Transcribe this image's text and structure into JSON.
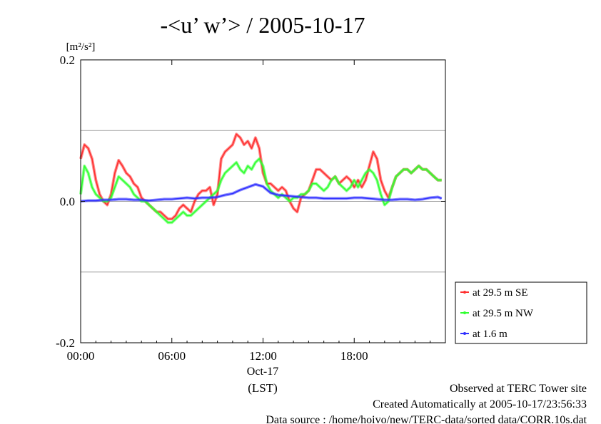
{
  "chart_data": {
    "type": "line",
    "title": "-<u’ w’> / 2005-10-17",
    "ylabel_unit": "[m²/s²]",
    "ylim": [
      -0.2,
      0.2
    ],
    "yticks": [
      {
        "value": 0.2,
        "label": "0.2"
      },
      {
        "value": 0.0,
        "label": "0.0"
      },
      {
        "value": -0.2,
        "label": "-0.2"
      }
    ],
    "ygrid": [
      0.1,
      0.0,
      -0.1
    ],
    "xlim": [
      0,
      24
    ],
    "xticks": [
      {
        "value": 0,
        "label": "00:00"
      },
      {
        "value": 6,
        "label": "06:00"
      },
      {
        "value": 12,
        "label": "12:00"
      },
      {
        "value": 18,
        "label": "18:00"
      }
    ],
    "date_label": "Oct-17",
    "xlabel": "(LST)",
    "grid": "horizontal",
    "legend_position": "right",
    "series": [
      {
        "name": "at 29.5 m SE",
        "color": "#ff3030",
        "x": [
          0,
          0.25,
          0.5,
          0.75,
          1,
          1.25,
          1.5,
          1.75,
          2,
          2.25,
          2.5,
          2.75,
          3,
          3.25,
          3.5,
          3.75,
          4,
          4.25,
          4.5,
          4.75,
          5,
          5.25,
          5.5,
          5.75,
          6,
          6.25,
          6.5,
          6.75,
          7,
          7.25,
          7.5,
          7.75,
          8,
          8.25,
          8.5,
          8.75,
          9,
          9.25,
          9.5,
          9.75,
          10,
          10.25,
          10.5,
          10.75,
          11,
          11.25,
          11.5,
          11.75,
          12,
          12.25,
          12.5,
          12.75,
          13,
          13.25,
          13.5,
          13.75,
          14,
          14.25,
          14.5,
          14.75,
          15,
          15.25,
          15.5,
          15.75,
          16,
          16.25,
          16.5,
          16.75,
          17,
          17.25,
          17.5,
          17.75,
          18,
          18.25,
          18.5,
          18.75,
          19,
          19.25,
          19.5,
          19.75,
          20,
          20.25,
          20.5,
          20.75,
          21,
          21.25,
          21.5,
          21.75,
          22,
          22.25,
          22.5,
          22.75,
          23,
          23.25,
          23.5,
          23.75
        ],
        "values": [
          0.06,
          0.08,
          0.075,
          0.06,
          0.03,
          0.01,
          0.0,
          -0.005,
          0.01,
          0.04,
          0.058,
          0.05,
          0.04,
          0.035,
          0.025,
          0.02,
          0.005,
          0.0,
          -0.005,
          -0.01,
          -0.015,
          -0.015,
          -0.02,
          -0.025,
          -0.025,
          -0.02,
          -0.01,
          -0.005,
          -0.01,
          -0.015,
          0.0,
          0.01,
          0.015,
          0.015,
          0.02,
          -0.005,
          0.01,
          0.06,
          0.07,
          0.075,
          0.08,
          0.095,
          0.09,
          0.08,
          0.085,
          0.075,
          0.09,
          0.075,
          0.04,
          0.025,
          0.025,
          0.02,
          0.015,
          0.02,
          0.015,
          0.0,
          -0.01,
          -0.015,
          0.005,
          0.01,
          0.015,
          0.03,
          0.045,
          0.045,
          0.04,
          0.035,
          0.03,
          0.035,
          0.025,
          0.03,
          0.035,
          0.03,
          0.02,
          0.03,
          0.02,
          0.03,
          0.05,
          0.07,
          0.06,
          0.03,
          0.015,
          0.005,
          0.02,
          0.035,
          0.04,
          0.045,
          0.045,
          0.04,
          0.045,
          0.05,
          0.045,
          0.045,
          0.04,
          0.035,
          0.03,
          0.03
        ]
      },
      {
        "name": "at 29.5 m NW",
        "color": "#30ff30",
        "x": [
          0,
          0.25,
          0.5,
          0.75,
          1,
          1.25,
          1.5,
          1.75,
          2,
          2.25,
          2.5,
          2.75,
          3,
          3.25,
          3.5,
          3.75,
          4,
          4.25,
          4.5,
          4.75,
          5,
          5.25,
          5.5,
          5.75,
          6,
          6.25,
          6.5,
          6.75,
          7,
          7.25,
          7.5,
          7.75,
          8,
          8.25,
          8.5,
          8.75,
          9,
          9.25,
          9.5,
          9.75,
          10,
          10.25,
          10.5,
          10.75,
          11,
          11.25,
          11.5,
          11.75,
          12,
          12.25,
          12.5,
          12.75,
          13,
          13.25,
          13.5,
          13.75,
          14,
          14.25,
          14.5,
          14.75,
          15,
          15.25,
          15.5,
          15.75,
          16,
          16.25,
          16.5,
          16.75,
          17,
          17.25,
          17.5,
          17.75,
          18,
          18.25,
          18.5,
          18.75,
          19,
          19.25,
          19.5,
          19.75,
          20,
          20.25,
          20.5,
          20.75,
          21,
          21.25,
          21.5,
          21.75,
          22,
          22.25,
          22.5,
          22.75,
          23,
          23.25,
          23.5,
          23.75
        ],
        "values": [
          0.01,
          0.05,
          0.04,
          0.02,
          0.01,
          0.005,
          0.0,
          0.0,
          0.005,
          0.02,
          0.035,
          0.03,
          0.025,
          0.02,
          0.01,
          0.005,
          0.0,
          0.0,
          -0.005,
          -0.01,
          -0.015,
          -0.02,
          -0.025,
          -0.03,
          -0.03,
          -0.025,
          -0.02,
          -0.015,
          -0.02,
          -0.02,
          -0.015,
          -0.01,
          -0.005,
          0.0,
          0.005,
          0.01,
          0.015,
          0.03,
          0.04,
          0.045,
          0.05,
          0.055,
          0.045,
          0.04,
          0.05,
          0.045,
          0.055,
          0.06,
          0.05,
          0.025,
          0.015,
          0.01,
          0.005,
          0.01,
          0.005,
          0.0,
          0.005,
          0.005,
          0.01,
          0.01,
          0.015,
          0.025,
          0.025,
          0.02,
          0.015,
          0.02,
          0.03,
          0.035,
          0.025,
          0.02,
          0.015,
          0.02,
          0.03,
          0.02,
          0.03,
          0.04,
          0.045,
          0.04,
          0.03,
          0.01,
          -0.005,
          0.0,
          0.02,
          0.035,
          0.04,
          0.045,
          0.045,
          0.04,
          0.045,
          0.05,
          0.045,
          0.045,
          0.04,
          0.035,
          0.03,
          0.03
        ]
      },
      {
        "name": "at 1.6 m",
        "color": "#3030ff",
        "x": [
          0,
          0.5,
          1,
          1.5,
          2,
          2.5,
          3,
          3.5,
          4,
          4.5,
          5,
          5.5,
          6,
          6.5,
          7,
          7.5,
          8,
          8.5,
          9,
          9.5,
          10,
          10.5,
          11,
          11.5,
          12,
          12.5,
          13,
          13.5,
          14,
          14.5,
          15,
          15.5,
          16,
          16.5,
          17,
          17.5,
          18,
          18.5,
          19,
          19.5,
          20,
          20.5,
          21,
          21.5,
          22,
          22.5,
          23,
          23.5,
          23.75
        ],
        "values": [
          0.0,
          0.001,
          0.001,
          0.002,
          0.002,
          0.003,
          0.003,
          0.002,
          0.002,
          0.001,
          0.002,
          0.003,
          0.003,
          0.004,
          0.005,
          0.004,
          0.005,
          0.005,
          0.006,
          0.009,
          0.011,
          0.016,
          0.02,
          0.024,
          0.021,
          0.012,
          0.009,
          0.008,
          0.007,
          0.006,
          0.005,
          0.005,
          0.004,
          0.004,
          0.004,
          0.004,
          0.005,
          0.005,
          0.004,
          0.003,
          0.002,
          0.002,
          0.003,
          0.003,
          0.002,
          0.003,
          0.005,
          0.006,
          0.004
        ]
      }
    ]
  },
  "footer": {
    "line1": "Observed at TERC Tower site",
    "line2": "Created Automatically at 2005-10-17/23:56:33",
    "line3": "Data source : /home/hoivo/new/TERC-data/sorted  data/CORR.10s.dat"
  }
}
